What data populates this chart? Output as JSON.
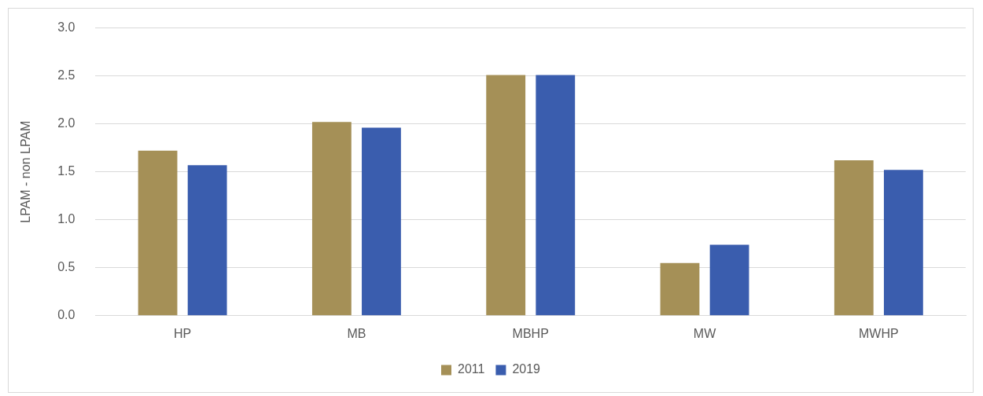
{
  "chart_data": {
    "type": "bar",
    "ylabel": "LPAM - non LPAM",
    "categories": [
      "HP",
      "MB",
      "MBHP",
      "MW",
      "MWHP"
    ],
    "series": [
      {
        "name": "2011",
        "color": "#a59057",
        "values": [
          1.72,
          2.02,
          2.51,
          0.55,
          1.62
        ]
      },
      {
        "name": "2019",
        "color": "#3a5dae",
        "values": [
          1.57,
          1.96,
          2.51,
          0.74,
          1.52
        ]
      }
    ],
    "ylim": [
      0,
      3
    ],
    "yticks": [
      {
        "value": 0,
        "label": "0.0"
      },
      {
        "value": 0.5,
        "label": "0.5"
      },
      {
        "value": 1,
        "label": "1.0"
      },
      {
        "value": 1.5,
        "label": "1.5"
      },
      {
        "value": 2,
        "label": "2.0"
      },
      {
        "value": 2.5,
        "label": "2.5"
      },
      {
        "value": 3,
        "label": "3.0"
      }
    ],
    "grid": "y",
    "legend": "bottom"
  }
}
